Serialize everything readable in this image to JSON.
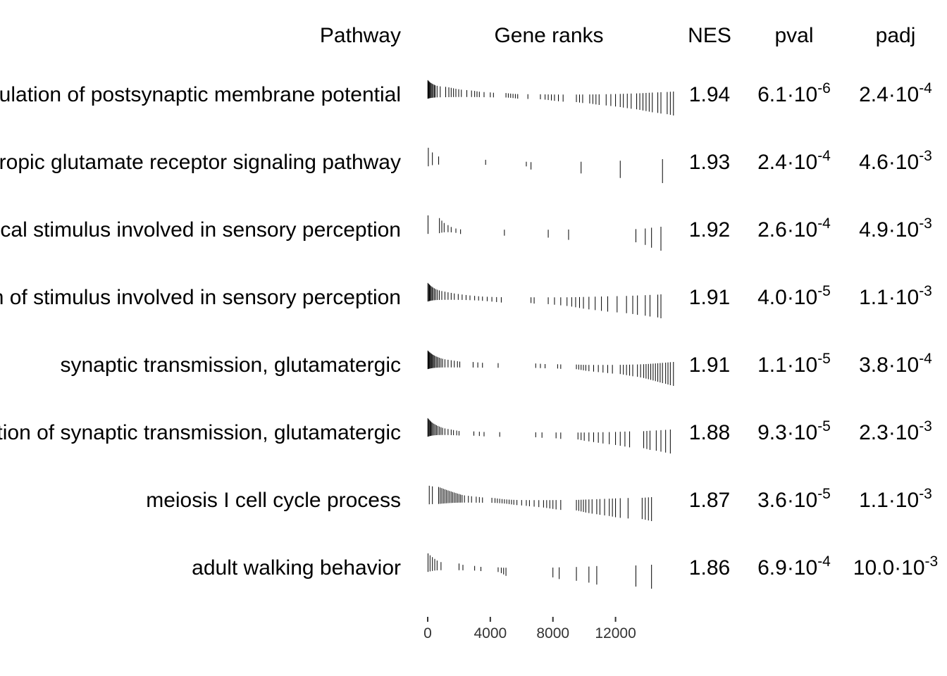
{
  "chart_data": {
    "type": "table",
    "columns": [
      "Pathway",
      "Gene ranks",
      "NES",
      "pval",
      "padj"
    ],
    "x_axis": {
      "ticks": [
        0,
        4000,
        8000,
        12000
      ],
      "range": [
        0,
        15800
      ]
    },
    "rows": [
      {
        "pathway": "regulation of postsynaptic membrane potential",
        "nes": "1.94",
        "pval": {
          "mantissa": "6.1",
          "exponent": "-6"
        },
        "padj": {
          "mantissa": "2.4",
          "exponent": "-4"
        },
        "gene_ranks": [
          10,
          40,
          80,
          120,
          170,
          220,
          280,
          350,
          420,
          480,
          600,
          800,
          1150,
          1350,
          1500,
          1650,
          1800,
          1980,
          2150,
          2500,
          2800,
          3000,
          3150,
          3300,
          3600,
          4000,
          4200,
          5000,
          5150,
          5300,
          5450,
          5600,
          5750,
          6400,
          7200,
          7500,
          7700,
          7900,
          8100,
          8350,
          8650,
          9500,
          9700,
          9900,
          10350,
          10550,
          10750,
          10950,
          11400,
          11700,
          12000,
          12300,
          12500,
          12750,
          13000,
          13350,
          13550,
          13750,
          13950,
          14150,
          14350,
          14700,
          14900,
          15300,
          15500,
          15700
        ]
      },
      {
        "pathway": "ionotropic glutamate receptor signaling pathway",
        "nes": "1.93",
        "pval": {
          "mantissa": "2.4",
          "exponent": "-4"
        },
        "padj": {
          "mantissa": "4.6",
          "exponent": "-3"
        },
        "gene_ranks": [
          40,
          300,
          700,
          3700,
          6300,
          6600,
          9800,
          12300,
          15000
        ]
      },
      {
        "pathway": "detection of chemical stimulus involved in sensory perception",
        "nes": "1.92",
        "pval": {
          "mantissa": "2.6",
          "exponent": "-4"
        },
        "padj": {
          "mantissa": "4.9",
          "exponent": "-3"
        },
        "gene_ranks": [
          20,
          750,
          900,
          1050,
          1300,
          1500,
          1800,
          2100,
          4900,
          7700,
          9000,
          13300,
          13900,
          14300,
          14900
        ]
      },
      {
        "pathway": "detection of stimulus involved in sensory perception",
        "nes": "1.91",
        "pval": {
          "mantissa": "4.0",
          "exponent": "-5"
        },
        "padj": {
          "mantissa": "1.1",
          "exponent": "-3"
        },
        "gene_ranks": [
          10,
          60,
          110,
          160,
          220,
          280,
          350,
          430,
          520,
          620,
          740,
          900,
          1100,
          1300,
          1500,
          1700,
          1950,
          2200,
          2450,
          2700,
          3000,
          3250,
          3500,
          3800,
          4100,
          4400,
          4700,
          6600,
          6800,
          7700,
          8100,
          8500,
          8900,
          9200,
          9450,
          9700,
          9950,
          10300,
          10700,
          11100,
          11500,
          12100,
          12700,
          13100,
          13400,
          13900,
          14200,
          14700,
          14900
        ]
      },
      {
        "pathway": "synaptic transmission, glutamatergic",
        "nes": "1.91",
        "pval": {
          "mantissa": "1.1",
          "exponent": "-5"
        },
        "padj": {
          "mantissa": "3.8",
          "exponent": "-4"
        },
        "gene_ranks": [
          10,
          50,
          90,
          140,
          190,
          240,
          300,
          360,
          420,
          500,
          580,
          660,
          750,
          850,
          950,
          1100,
          1300,
          1500,
          1700,
          1900,
          2050,
          2900,
          3200,
          3500,
          4500,
          6900,
          7200,
          7500,
          8300,
          8500,
          9500,
          9650,
          9800,
          9950,
          10100,
          10300,
          10600,
          10900,
          11200,
          11500,
          11800,
          12300,
          12500,
          12700,
          12900,
          13100,
          13400,
          13600,
          13800,
          13950,
          14100,
          14250,
          14400,
          14550,
          14700,
          14850,
          15000,
          15200,
          15350,
          15500,
          15700
        ]
      },
      {
        "pathway": "regulation of synaptic transmission, glutamatergic",
        "nes": "1.88",
        "pval": {
          "mantissa": "9.3",
          "exponent": "-5"
        },
        "padj": {
          "mantissa": "2.3",
          "exponent": "-3"
        },
        "gene_ranks": [
          10,
          50,
          100,
          150,
          200,
          260,
          320,
          400,
          480,
          560,
          650,
          750,
          850,
          950,
          1100,
          1300,
          1500,
          1650,
          1850,
          2000,
          2950,
          3300,
          3600,
          4600,
          6900,
          7300,
          8200,
          8500,
          9600,
          9800,
          10000,
          10300,
          10600,
          10900,
          11200,
          11600,
          12000,
          12300,
          12600,
          12900,
          13800,
          14000,
          14200,
          14600,
          14900,
          15200,
          15500
        ]
      },
      {
        "pathway": "meiosis I cell cycle process",
        "nes": "1.87",
        "pval": {
          "mantissa": "3.6",
          "exponent": "-5"
        },
        "padj": {
          "mantissa": "1.1",
          "exponent": "-3"
        },
        "gene_ranks": [
          100,
          300,
          700,
          800,
          900,
          1000,
          1100,
          1200,
          1300,
          1400,
          1500,
          1600,
          1700,
          1800,
          1900,
          2000,
          2100,
          2200,
          2350,
          2600,
          2800,
          3100,
          3300,
          3500,
          4100,
          4300,
          4450,
          4600,
          4750,
          4900,
          5050,
          5200,
          5350,
          5500,
          5700,
          6000,
          6300,
          6500,
          6800,
          7100,
          7400,
          7600,
          7800,
          8000,
          8200,
          8500,
          9500,
          9650,
          9800,
          9950,
          10100,
          10300,
          10500,
          10800,
          11000,
          11300,
          11600,
          11800,
          12000,
          12300,
          12800,
          13700,
          13900,
          14100,
          14300
        ]
      },
      {
        "pathway": "adult walking behavior",
        "nes": "1.86",
        "pval": {
          "mantissa": "6.9",
          "exponent": "-4"
        },
        "padj": {
          "mantissa": "10.0",
          "exponent": "-3"
        },
        "gene_ranks": [
          20,
          150,
          300,
          450,
          600,
          850,
          2000,
          2250,
          3000,
          3400,
          4500,
          4700,
          4850,
          5000,
          8000,
          8400,
          9500,
          10300,
          10800,
          13300,
          14300
        ]
      }
    ]
  }
}
